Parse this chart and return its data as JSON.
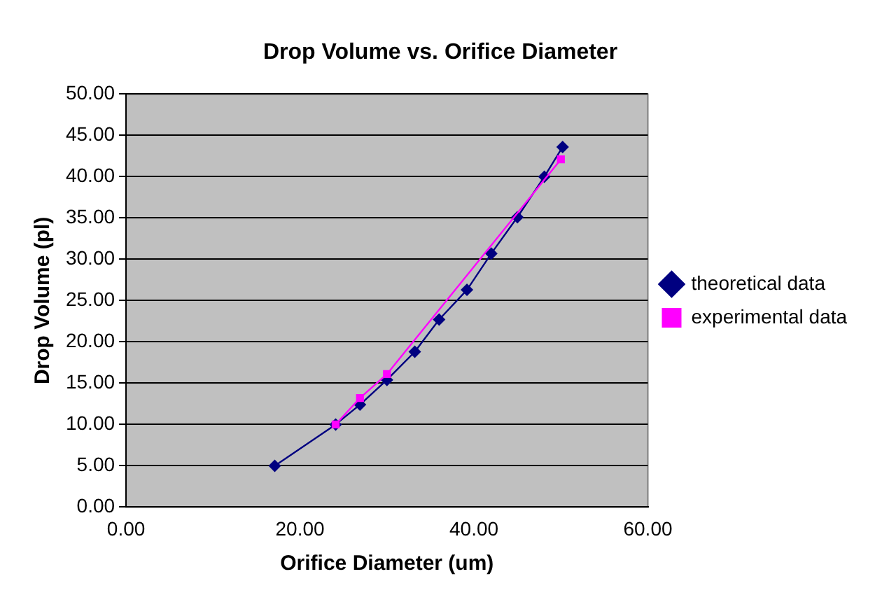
{
  "chart_data": {
    "type": "line",
    "title": "Drop Volume vs. Orifice Diameter",
    "xlabel": "Orifice Diameter (um)",
    "ylabel": "Drop Volume (pl)",
    "series": [
      {
        "name": "theoretical data",
        "color": "#000080",
        "marker": "diamond",
        "x": [
          17.1,
          24.1,
          26.9,
          30.0,
          33.2,
          36.0,
          39.2,
          42.0,
          45.0,
          48.1,
          50.2
        ],
        "values": [
          5.0,
          10.0,
          12.4,
          15.4,
          18.8,
          22.7,
          26.3,
          30.7,
          35.1,
          40.0,
          43.6
        ]
      },
      {
        "name": "experimental data",
        "color": "#ff00ff",
        "marker": "square",
        "x": [
          24.1,
          26.9,
          30.0,
          50.0
        ],
        "values": [
          10.0,
          13.2,
          16.1,
          42.1
        ]
      }
    ],
    "xlim": [
      0,
      60
    ],
    "xticks": [
      {
        "value": 0,
        "label": "0.00"
      },
      {
        "value": 20,
        "label": "20.00"
      },
      {
        "value": 40,
        "label": "40.00"
      },
      {
        "value": 60,
        "label": "60.00"
      }
    ],
    "ylim": [
      0,
      50
    ],
    "yticks": [
      {
        "value": 0,
        "label": "0.00"
      },
      {
        "value": 5,
        "label": "5.00"
      },
      {
        "value": 10,
        "label": "10.00"
      },
      {
        "value": 15,
        "label": "15.00"
      },
      {
        "value": 20,
        "label": "20.00"
      },
      {
        "value": 25,
        "label": "25.00"
      },
      {
        "value": 30,
        "label": "30.00"
      },
      {
        "value": 35,
        "label": "35.00"
      },
      {
        "value": 40,
        "label": "40.00"
      },
      {
        "value": 45,
        "label": "45.00"
      },
      {
        "value": 50,
        "label": "50.00"
      }
    ],
    "grid": "y",
    "legend": "right",
    "line_style": "solid"
  }
}
